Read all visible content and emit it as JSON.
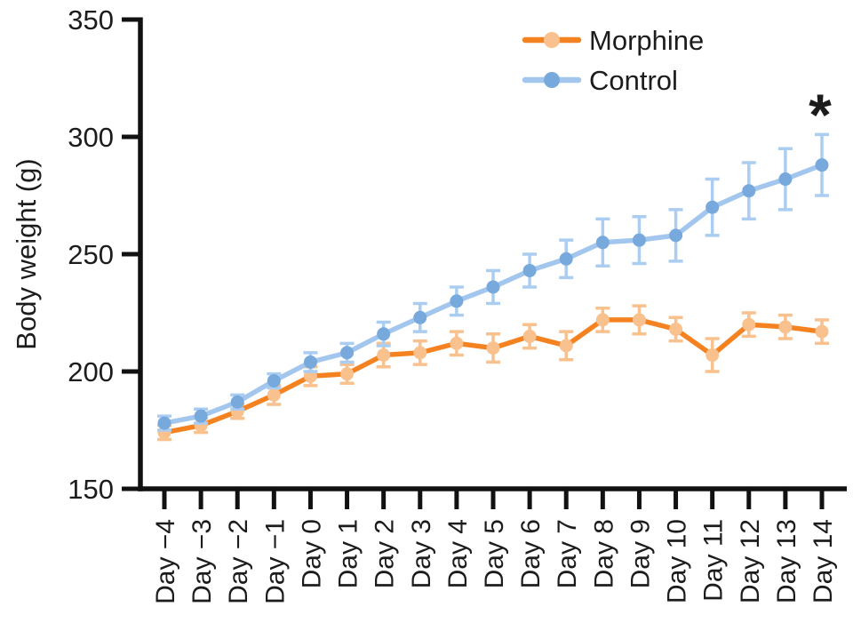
{
  "chart_data": {
    "type": "line",
    "title": "",
    "xlabel": "",
    "ylabel": "Body weight (g)",
    "ylim": [
      150,
      350
    ],
    "yticks": [
      150,
      200,
      250,
      300,
      350
    ],
    "grid": false,
    "legend_position": "top-right",
    "categories": [
      "Day −4",
      "Day −3",
      "Day −2",
      "Day −1",
      "Day 0",
      "Day 1",
      "Day 2",
      "Day 3",
      "Day 4",
      "Day 5",
      "Day 6",
      "Day 7",
      "Day 8",
      "Day 9",
      "Day 10",
      "Day 11",
      "Day 12",
      "Day 13",
      "Day 14"
    ],
    "series": [
      {
        "name": "Morphine",
        "values": [
          174,
          177,
          183,
          190,
          198,
          199,
          207,
          208,
          212,
          210,
          215,
          211,
          222,
          222,
          218,
          207,
          220,
          219,
          217
        ],
        "errors": [
          3,
          3,
          3,
          4,
          4,
          4,
          5,
          5,
          5,
          6,
          5,
          6,
          5,
          6,
          5,
          7,
          5,
          5,
          5
        ],
        "line_color": "#f58220",
        "marker_color": "#f9c18e",
        "error_color": "#f9c18e"
      },
      {
        "name": "Control",
        "values": [
          178,
          181,
          187,
          196,
          204,
          208,
          216,
          223,
          230,
          236,
          243,
          248,
          255,
          256,
          258,
          270,
          277,
          282,
          288
        ],
        "errors": [
          3,
          3,
          3,
          3,
          4,
          4,
          5,
          6,
          6,
          7,
          7,
          8,
          10,
          10,
          11,
          12,
          12,
          13,
          13
        ],
        "line_color": "#a3c6ee",
        "marker_color": "#77a9dd",
        "error_color": "#aacdf1"
      }
    ],
    "annotation": {
      "symbol": "*",
      "color": "#e31212"
    }
  }
}
